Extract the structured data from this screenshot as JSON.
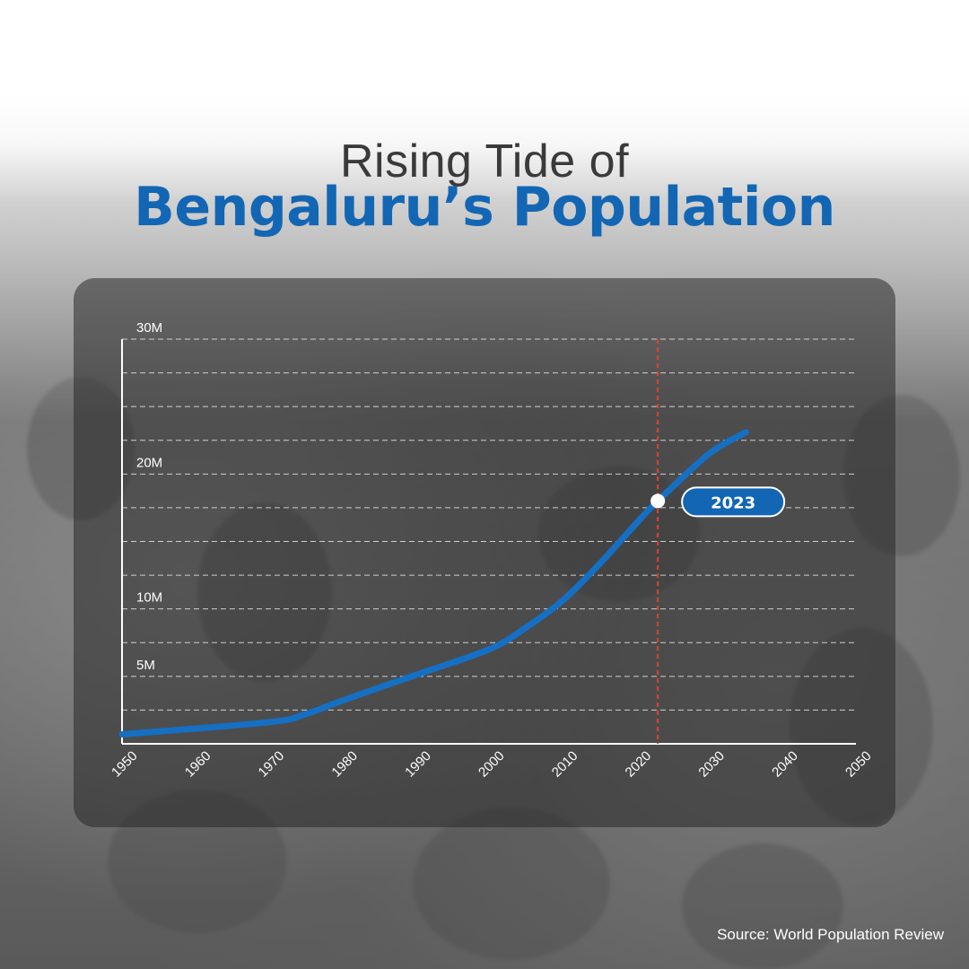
{
  "title_line1": "Rising Tide of",
  "title_line2": "Bengaluru’s Population",
  "source": "Source: World Population Review",
  "colors": {
    "accent": "#1366b4",
    "marker": "#e0442c",
    "text": "#3a3a3a"
  },
  "chart_data": {
    "type": "line",
    "x": [
      1950,
      1970,
      1975,
      1980,
      1990,
      2000,
      2005,
      2010,
      2015,
      2020,
      2023,
      2030,
      2035
    ],
    "series": [
      {
        "values": [
          0.7,
          1.6,
          2.2,
          3.2,
          5.1,
          7.0,
          8.6,
          10.6,
          13.3,
          16.3,
          18.0,
          21.5,
          23.1
        ]
      }
    ],
    "xticks": [
      "1950",
      "1960",
      "1970",
      "1980",
      "1990",
      "2000",
      "2010",
      "2020",
      "2030",
      "2040",
      "2050"
    ],
    "yticks": [
      {
        "value": 5,
        "label": "5M"
      },
      {
        "value": 10,
        "label": "10M"
      },
      {
        "value": 20,
        "label": "20M"
      },
      {
        "value": 30,
        "label": "30M"
      }
    ],
    "xlim": [
      1950,
      2050
    ],
    "ylim": [
      0,
      30
    ],
    "grid": true,
    "highlight": {
      "x": 2023,
      "y": 18.0,
      "label": "2023"
    }
  }
}
